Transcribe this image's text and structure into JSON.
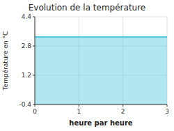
{
  "chart_data": {
    "type": "area",
    "title": "Evolution de la température",
    "x_label": "heure par heure",
    "y_label": "Température en °C",
    "x": [
      0,
      3
    ],
    "values": [
      3.3,
      3.3
    ],
    "color": "#55c8e0",
    "xlim": [
      0,
      3
    ],
    "ylim": [
      -0.4,
      4.4
    ],
    "xticks": [
      0,
      1,
      2,
      3
    ],
    "yticks": [
      -0.4,
      1.2,
      2.8,
      4.4
    ],
    "grid": true
  }
}
